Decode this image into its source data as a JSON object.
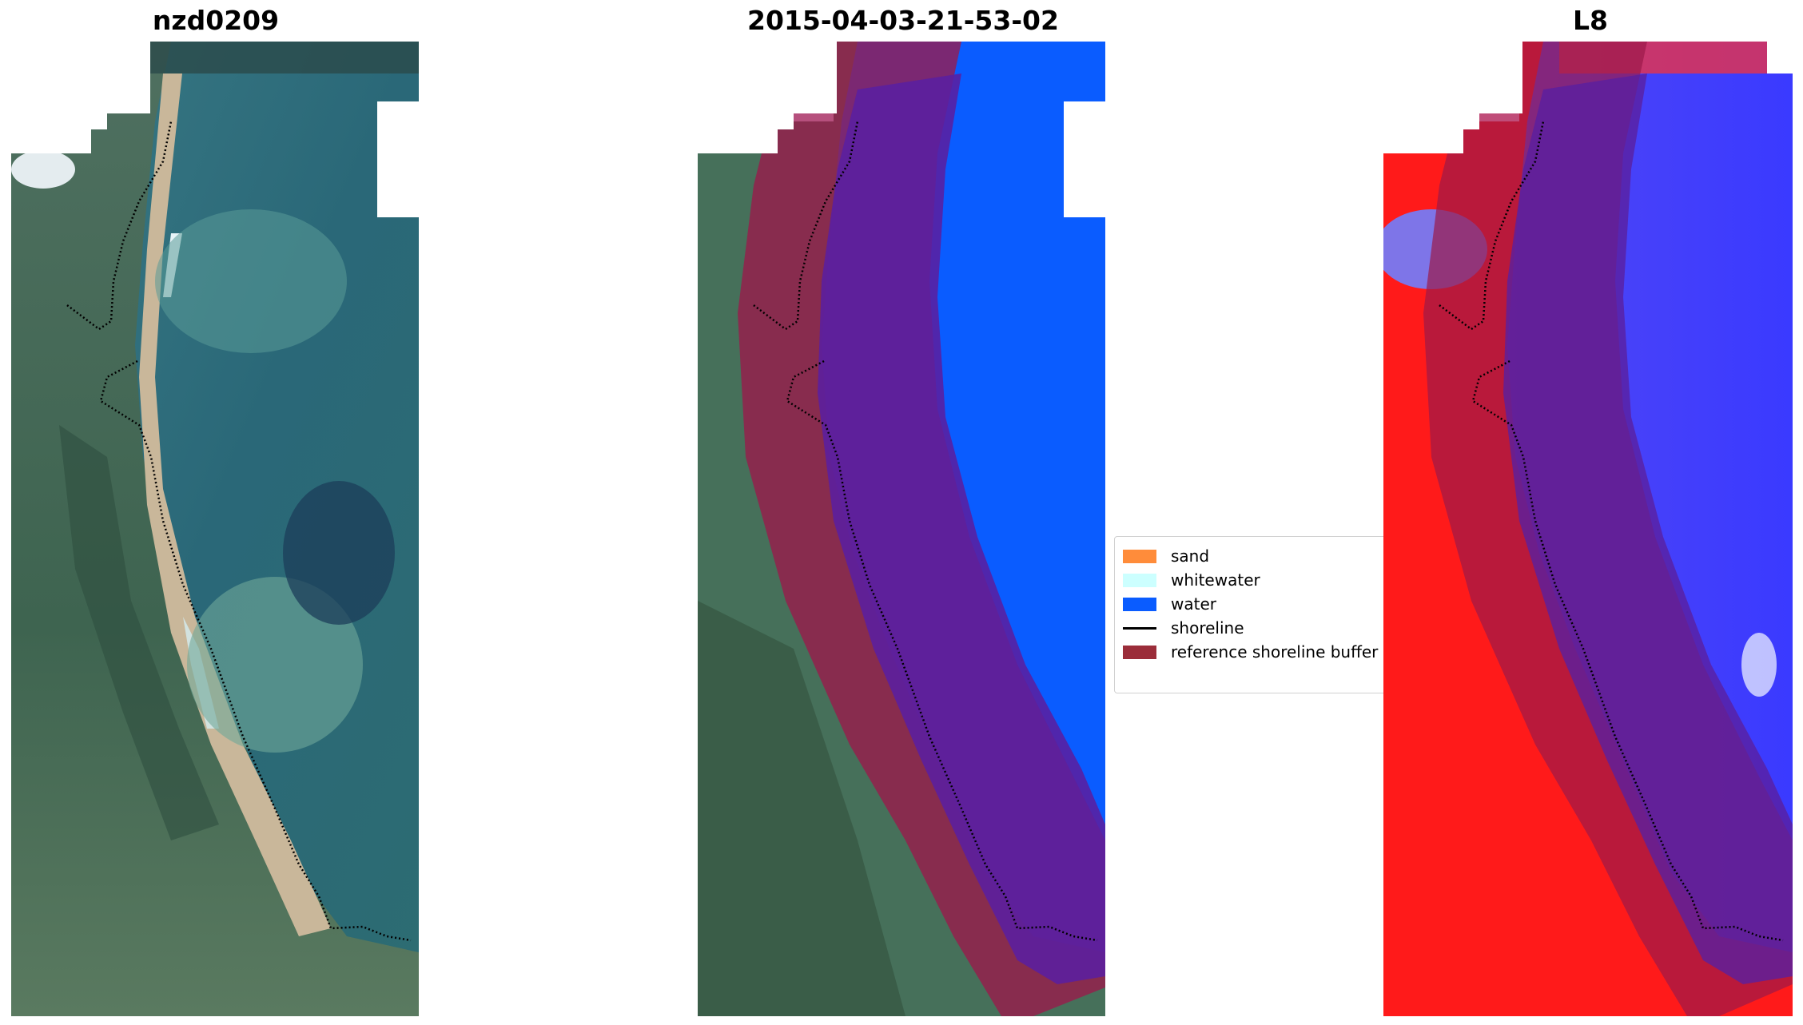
{
  "panels": [
    {
      "title": "nzd0209",
      "style": "rgb"
    },
    {
      "title": "2015-04-03-21-53-02",
      "style": "classified"
    },
    {
      "title": "L8",
      "style": "index"
    }
  ],
  "legend": {
    "items": [
      {
        "label": "sand",
        "color": "#ff8c3a",
        "kind": "patch"
      },
      {
        "label": "whitewater",
        "color": "#ccffff",
        "kind": "patch"
      },
      {
        "label": "water",
        "color": "#0a5cff",
        "kind": "patch"
      },
      {
        "label": "shoreline",
        "color": "#000000",
        "kind": "line"
      },
      {
        "label": "reference shoreline buffer",
        "color": "#9b2d3a",
        "kind": "patch"
      }
    ]
  },
  "colors": {
    "water_class": "#0a5cff",
    "buffer": "#9b1a4a",
    "land_index": "#ff1a1a",
    "water_index": "#3c3cff"
  }
}
